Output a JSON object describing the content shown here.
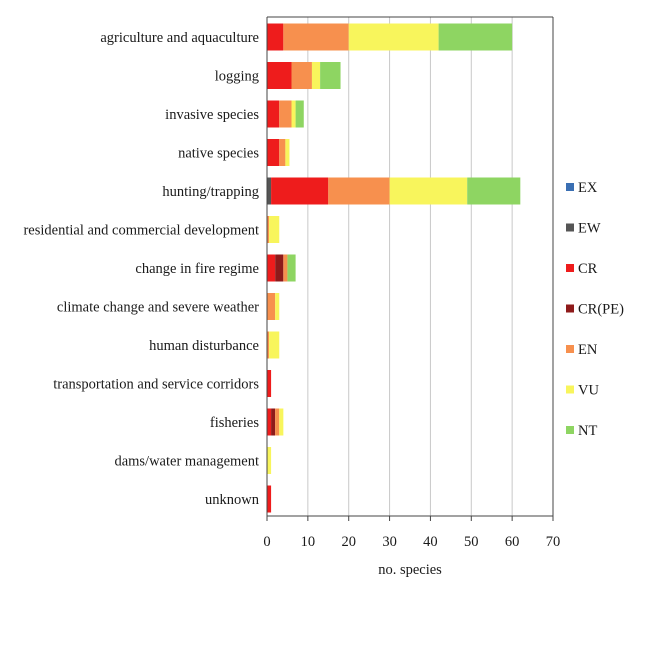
{
  "chart_data": {
    "type": "bar",
    "orientation": "horizontal",
    "stacked": true,
    "categories": [
      "agriculture and aquaculture",
      "logging",
      "invasive species",
      "native species",
      "hunting/trapping",
      "residential and commercial development",
      "change in fire regime",
      "climate change and severe weather",
      "human disturbance",
      "transportation and service corridors",
      "fisheries",
      "dams/water management",
      "unknown"
    ],
    "series": [
      {
        "name": "EX",
        "color": "#3a6fb3",
        "values": [
          0,
          0,
          0,
          0,
          0,
          0,
          0,
          0,
          0,
          0,
          0,
          0,
          0
        ]
      },
      {
        "name": "EW",
        "color": "#555555",
        "values": [
          0,
          0,
          0,
          0,
          1,
          0,
          0,
          0,
          0,
          0,
          0,
          0,
          0
        ]
      },
      {
        "name": "CR",
        "color": "#ee1c1c",
        "values": [
          4,
          6,
          3,
          3,
          14,
          0,
          2,
          0,
          0,
          1,
          1,
          0,
          1
        ]
      },
      {
        "name": "CR(PE)",
        "color": "#8e1a1a",
        "values": [
          0,
          0,
          0,
          0,
          0,
          0,
          2,
          0,
          0,
          0,
          1,
          0,
          0
        ]
      },
      {
        "name": "EN",
        "color": "#f7904e",
        "values": [
          16,
          5,
          3,
          1.5,
          15,
          0.5,
          1,
          2,
          0.5,
          0,
          1,
          0,
          0
        ]
      },
      {
        "name": "VU",
        "color": "#f8f55c",
        "values": [
          22,
          2,
          1,
          1,
          19,
          2.5,
          0,
          1,
          2.5,
          0,
          1,
          1,
          0
        ]
      },
      {
        "name": "NT",
        "color": "#8ed562",
        "values": [
          18,
          5,
          2,
          0,
          13,
          0,
          2,
          0,
          0,
          0,
          0,
          0,
          0
        ]
      }
    ],
    "xlabel": "no. species",
    "ylabel": "",
    "xlim": [
      0,
      70
    ],
    "xticks": [
      0,
      10,
      20,
      30,
      40,
      50,
      60,
      70
    ],
    "grid": "vertical",
    "legend_position": "right"
  }
}
